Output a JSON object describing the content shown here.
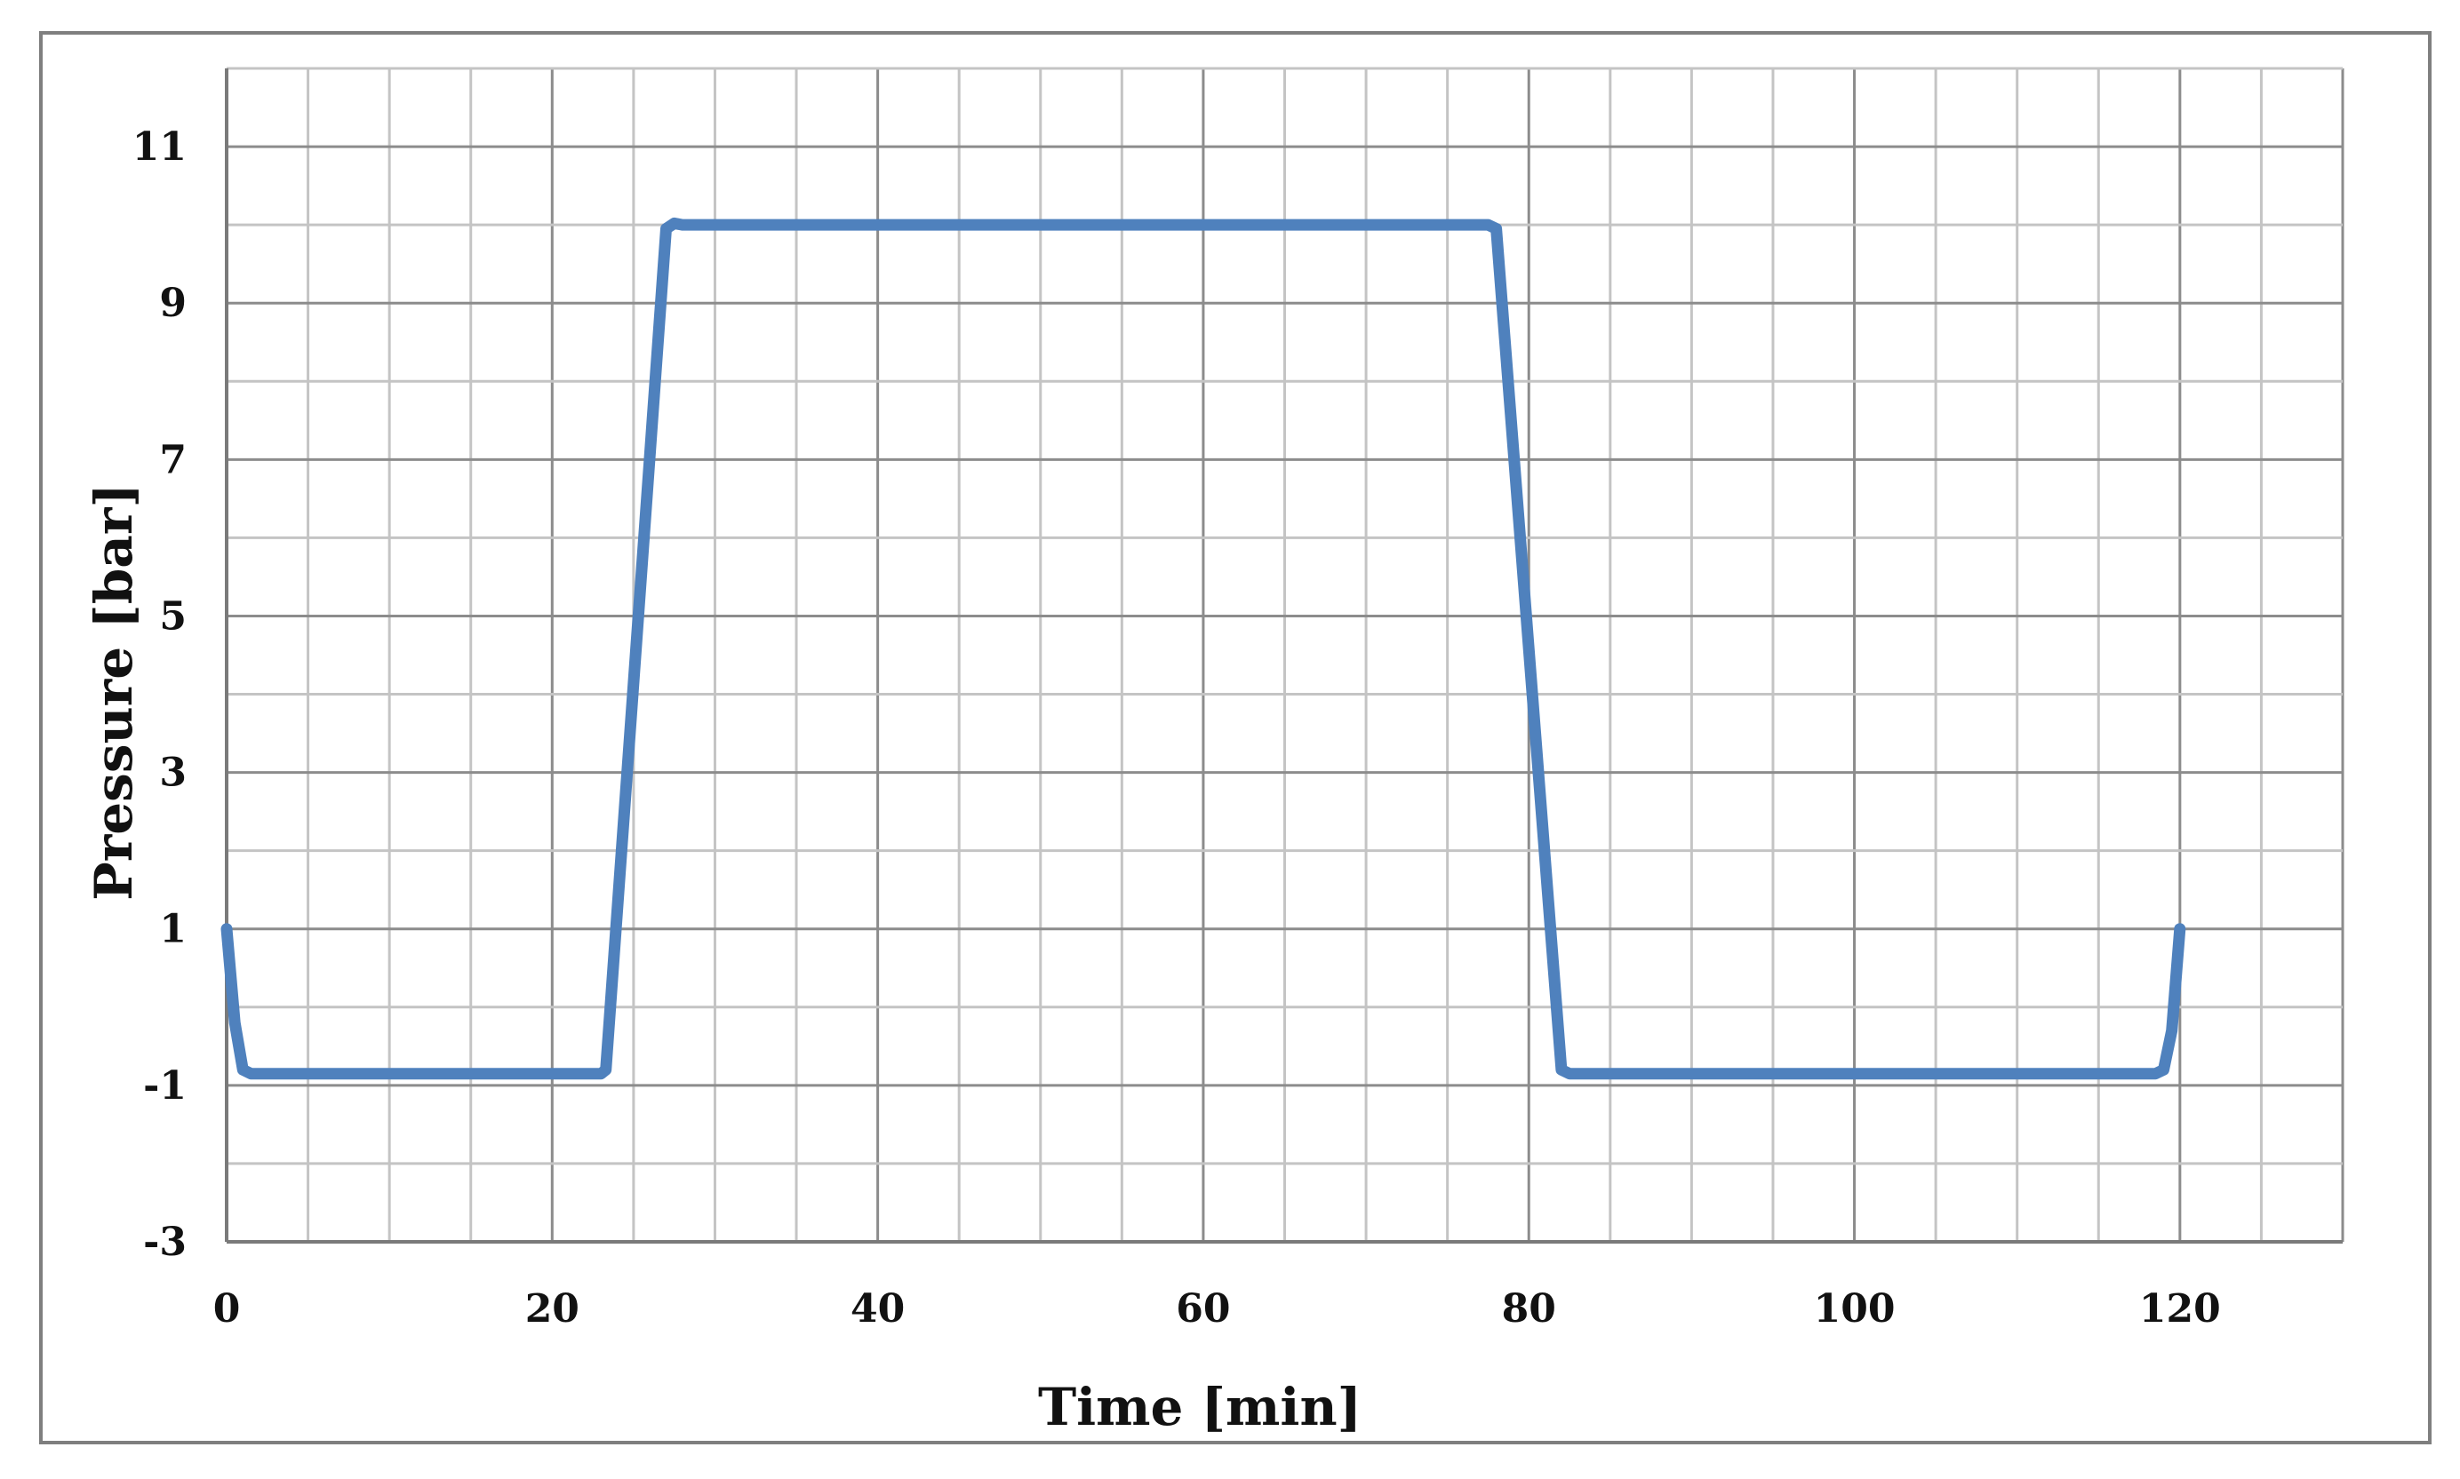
{
  "chart_data": {
    "type": "line",
    "title": "",
    "xlabel": "Time [min]",
    "ylabel": "Pressure [bar]",
    "xlim": [
      0,
      130
    ],
    "ylim": [
      -3,
      12
    ],
    "x_ticks": [
      0,
      20,
      40,
      60,
      80,
      100,
      120
    ],
    "x_tick_labels": [
      "0",
      "20",
      "40",
      "60",
      "80",
      "100",
      "120"
    ],
    "y_ticks": [
      -3,
      -1,
      1,
      3,
      5,
      7,
      9,
      11
    ],
    "y_tick_labels": [
      "-3",
      "-1",
      "1",
      "3",
      "5",
      "7",
      "9",
      "11"
    ],
    "grid": true,
    "grid_minor_x": 5,
    "grid_minor_y": 1,
    "legend": "none",
    "series": [
      {
        "color": "#4f81bd",
        "x": [
          0,
          0.5,
          1.0,
          1.5,
          22.5,
          23.0,
          23.3,
          27.0,
          27.5,
          28.0,
          77.5,
          78.0,
          82.0,
          82.5,
          83.0,
          118.5,
          119.0,
          119.5,
          120
        ],
        "y": [
          1,
          -0.2,
          -0.8,
          -0.85,
          -0.85,
          -0.85,
          -0.8,
          9.95,
          10.02,
          10.0,
          10.0,
          9.95,
          -0.8,
          -0.85,
          -0.85,
          -0.85,
          -0.8,
          -0.3,
          1
        ]
      }
    ]
  }
}
